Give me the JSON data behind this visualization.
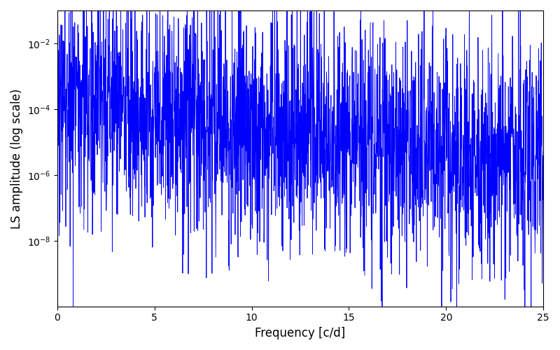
{
  "title": "",
  "xlabel": "Frequency [c/d]",
  "ylabel": "LS amplitude (log scale)",
  "xlim": [
    0,
    25
  ],
  "ylim": [
    1e-10,
    0.1
  ],
  "line_color": "#0000ff",
  "line_width": 0.6,
  "background_color": "#ffffff",
  "seed": 1234,
  "n_points": 2500,
  "freq_max": 25.0,
  "base_amplitude_log": -3.8,
  "decay_rate": 0.08,
  "noise_std": 1.8,
  "yticks": [
    1e-08,
    1e-06,
    0.0001,
    0.01
  ],
  "xticks": [
    0,
    5,
    10,
    15,
    20,
    25
  ],
  "figsize": [
    8.0,
    5.0
  ],
  "dpi": 100
}
